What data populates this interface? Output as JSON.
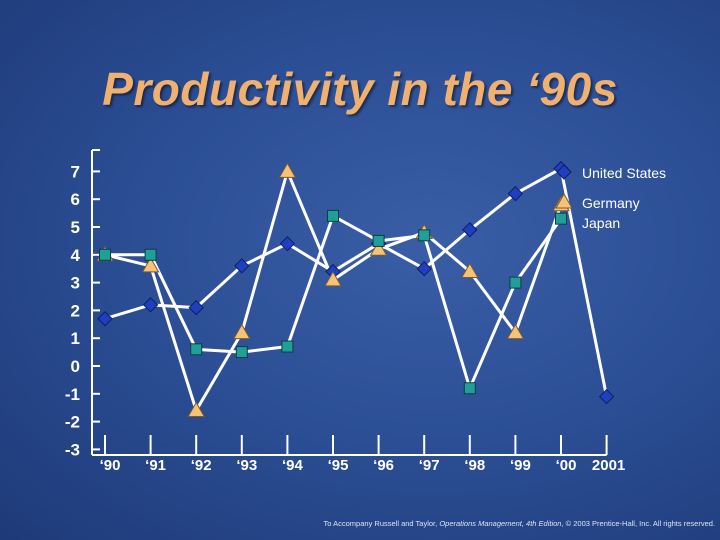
{
  "slide": {
    "title": "Productivity in the ‘90s",
    "footer_prefix": "To Accompany Russell and Taylor, ",
    "footer_book": "Operations Management, 4th Edition",
    "footer_suffix": ", © 2003 Prentice-Hall, Inc. All rights reserved."
  },
  "colors": {
    "axis": "#ffffff",
    "line": "#ffffff",
    "us_marker": "#1f3fbf",
    "germany_marker": "#f5c27a",
    "japan_marker": "#1f9e9a"
  },
  "chart_data": {
    "type": "line",
    "title": "Productivity in the ‘90s",
    "xlabel": "",
    "ylabel": "",
    "categories": [
      "‘90",
      "‘91",
      "‘92",
      "‘93",
      "‘94",
      "‘95",
      "‘96",
      "‘97",
      "‘98",
      "‘99",
      "‘00",
      "2001"
    ],
    "y_ticks": [
      "7",
      "6",
      "5",
      "4",
      "3",
      "2",
      "1",
      "0",
      "-1",
      "-2",
      "-3"
    ],
    "ylim": [
      -3,
      8
    ],
    "grid": false,
    "legend_position": "top-right",
    "series": [
      {
        "name": "United States",
        "marker": "diamond",
        "values": [
          1.7,
          2.2,
          2.1,
          3.6,
          4.4,
          3.4,
          4.4,
          3.5,
          4.9,
          6.2,
          7.1,
          -1.1
        ]
      },
      {
        "name": "Germany",
        "marker": "triangle",
        "values": [
          4.0,
          3.6,
          -1.6,
          1.2,
          7.0,
          3.1,
          4.2,
          4.8,
          3.4,
          1.2,
          5.8,
          null
        ]
      },
      {
        "name": "Japan",
        "marker": "square",
        "values": [
          4.0,
          4.0,
          0.6,
          0.5,
          0.7,
          5.4,
          4.5,
          4.7,
          -0.8,
          3.0,
          5.3,
          null
        ]
      }
    ]
  }
}
